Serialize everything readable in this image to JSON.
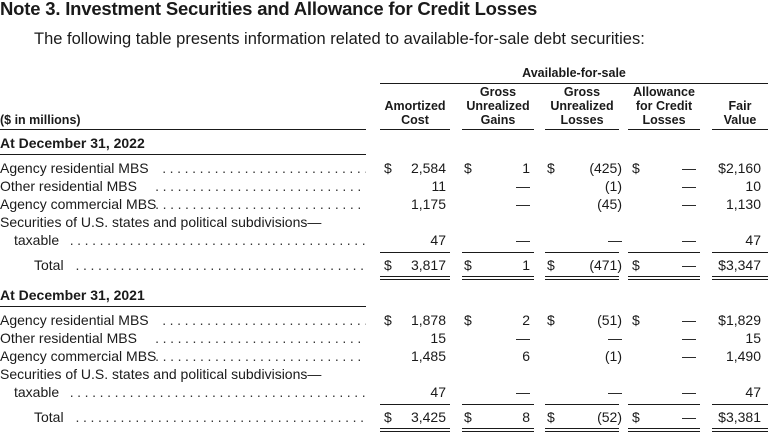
{
  "title": "Note 3. Investment Securities and Allowance for Credit Losses",
  "subtitle": "The following table presents information related to available-for-sale debt securities:",
  "group_header": "Available-for-sale",
  "units_label": "($ in millions)",
  "columns": {
    "amortized_cost": [
      "Amortized",
      "Cost"
    ],
    "gross_gains": [
      "Gross",
      "Unrealized",
      "Gains"
    ],
    "gross_losses": [
      "Gross",
      "Unrealized",
      "Losses"
    ],
    "allowance": [
      "Allowance",
      "for Credit",
      "Losses"
    ],
    "fair_value": [
      "Fair",
      "Value"
    ]
  },
  "sections": [
    {
      "heading": "At December 31, 2022",
      "rows": [
        {
          "label": "Agency residential MBS",
          "cost_sign": "$",
          "cost": "2,584",
          "gains_sign": "$",
          "gains": "1",
          "losses_sign": "$",
          "losses": "(425)",
          "allow_sign": "$",
          "allow": "—",
          "fair": "$2,160"
        },
        {
          "label": "Other residential MBS",
          "cost": "11",
          "gains": "—",
          "losses": "(1)",
          "allow": "—",
          "fair": "10"
        },
        {
          "label": "Agency commercial MBS",
          "cost": "1,175",
          "gains": "—",
          "losses": "(45)",
          "allow": "—",
          "fair": "1,130"
        },
        {
          "label": "Securities of U.S. states and political subdivisions—",
          "continuation": "taxable",
          "cost": "47",
          "gains": "—",
          "losses": "—",
          "allow": "—",
          "fair": "47"
        }
      ],
      "total": {
        "label": "Total",
        "cost_sign": "$",
        "cost": "3,817",
        "gains_sign": "$",
        "gains": "1",
        "losses_sign": "$",
        "losses": "(471)",
        "allow_sign": "$",
        "allow": "—",
        "fair": "$3,347"
      }
    },
    {
      "heading": "At December 31, 2021",
      "rows": [
        {
          "label": "Agency residential MBS",
          "cost_sign": "$",
          "cost": "1,878",
          "gains_sign": "$",
          "gains": "2",
          "losses_sign": "$",
          "losses": "(51)",
          "allow_sign": "$",
          "allow": "—",
          "fair": "$1,829"
        },
        {
          "label": "Other residential MBS",
          "cost": "15",
          "gains": "—",
          "losses": "—",
          "allow": "—",
          "fair": "15"
        },
        {
          "label": "Agency commercial MBS",
          "cost": "1,485",
          "gains": "6",
          "losses": "(1)",
          "allow": "—",
          "fair": "1,490"
        },
        {
          "label": "Securities of U.S. states and political subdivisions—",
          "continuation": "taxable",
          "cost": "47",
          "gains": "—",
          "losses": "—",
          "allow": "—",
          "fair": "47"
        }
      ],
      "total": {
        "label": "Total",
        "cost_sign": "$",
        "cost": "3,425",
        "gains_sign": "$",
        "gains": "8",
        "losses_sign": "$",
        "losses": "(52)",
        "allow_sign": "$",
        "allow": "—",
        "fair": "$3,381"
      }
    }
  ]
}
